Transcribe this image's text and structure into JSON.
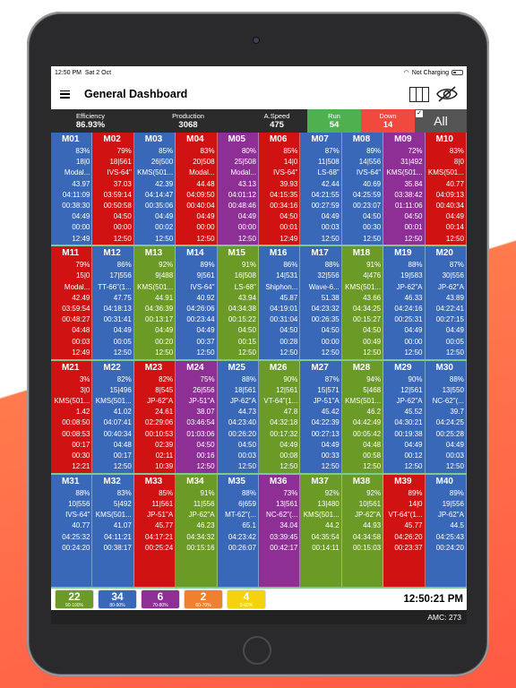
{
  "status": {
    "time": "12:50 PM",
    "date": "Sat 2 Oct",
    "charging": "Not Charging"
  },
  "header": {
    "title": "General Dashboard"
  },
  "summary": {
    "efficiency_label": "Efficiency",
    "efficiency_value": "86.93%",
    "production_label": "Production",
    "production_value": "3068",
    "speed_label": "A.Speed",
    "speed_value": "475",
    "run_label": "Run",
    "run_value": "54",
    "down_label": "Down",
    "down_value": "14",
    "all_label": "All"
  },
  "machines": [
    {
      "id": "M01",
      "color": "blue",
      "lines": [
        "83%",
        "18|0",
        "Modal...",
        "43.97",
        "04:11:09",
        "00:38:30",
        "04:49",
        "00:00",
        "12:49"
      ]
    },
    {
      "id": "M02",
      "color": "red",
      "lines": [
        "79%",
        "18|561",
        "IVS-64\"",
        "37.03",
        "03:59:14",
        "00:50:58",
        "04:50",
        "00:00",
        "12:50"
      ]
    },
    {
      "id": "M03",
      "color": "blue",
      "lines": [
        "85%",
        "26|500",
        "KMS(501...",
        "42.39",
        "04:14:47",
        "00:35:06",
        "04:49",
        "00:02",
        "12:50"
      ]
    },
    {
      "id": "M04",
      "color": "red",
      "lines": [
        "83%",
        "20|508",
        "Modal...",
        "44.48",
        "04:09:50",
        "00:40:04",
        "04:49",
        "00:00",
        "12:50"
      ]
    },
    {
      "id": "M05",
      "color": "purple",
      "lines": [
        "80%",
        "25|508",
        "Modal...",
        "43.13",
        "04:01:12",
        "00:48:46",
        "04:49",
        "00:00",
        "12:50"
      ]
    },
    {
      "id": "M06",
      "color": "red",
      "lines": [
        "85%",
        "14|0",
        "IVS-64\"",
        "39.93",
        "04:15:35",
        "00:34:16",
        "04:50",
        "00:01",
        "12:49"
      ]
    },
    {
      "id": "M07",
      "color": "blue",
      "lines": [
        "87%",
        "11|508",
        "LS-68\"",
        "42.44",
        "04:21:55",
        "00:27:59",
        "04:49",
        "00:03",
        "12:50"
      ]
    },
    {
      "id": "M08",
      "color": "blue",
      "lines": [
        "89%",
        "14|556",
        "IVS-64\"",
        "40.69",
        "04:25:59",
        "00:23:07",
        "04:50",
        "00:30",
        "12:50"
      ]
    },
    {
      "id": "M09",
      "color": "purple",
      "lines": [
        "72%",
        "31|492",
        "KMS(501...",
        "35.84",
        "03:38:42",
        "01:11:06",
        "04:50",
        "00:01",
        "12:50"
      ]
    },
    {
      "id": "M10",
      "color": "red",
      "lines": [
        "83%",
        "8|0",
        "KMS(501...",
        "40.77",
        "04:09:13",
        "00:40:34",
        "04:49",
        "00:14",
        "12:50"
      ]
    },
    {
      "id": "M11",
      "color": "red",
      "lines": [
        "79%",
        "15|0",
        "Modal...",
        "42.49",
        "03:59:54",
        "00:48:27",
        "04:48",
        "00:03",
        "12:49"
      ]
    },
    {
      "id": "M12",
      "color": "blue",
      "lines": [
        "86%",
        "17|556",
        "TT-66\"(1...",
        "47.75",
        "04:18:13",
        "00:31:41",
        "04:49",
        "00:05",
        "12:50"
      ]
    },
    {
      "id": "M13",
      "color": "green",
      "lines": [
        "92%",
        "9|488",
        "KMS(501...",
        "44.91",
        "04:36:39",
        "00:13:17",
        "04:49",
        "00:20",
        "12:50"
      ]
    },
    {
      "id": "M14",
      "color": "blue",
      "lines": [
        "89%",
        "9|561",
        "IVS-64\"",
        "40.92",
        "04:26:06",
        "00:23:44",
        "04:49",
        "00:37",
        "12:50"
      ]
    },
    {
      "id": "M15",
      "color": "green",
      "lines": [
        "91%",
        "16|508",
        "LS-68\"",
        "43.94",
        "04:34:38",
        "00:15:22",
        "04:50",
        "00:15",
        "12:50"
      ]
    },
    {
      "id": "M16",
      "color": "blue",
      "lines": [
        "86%",
        "14|531",
        "Shiphon...",
        "45.87",
        "04:19:01",
        "00:31:04",
        "04:50",
        "00:28",
        "12:50"
      ]
    },
    {
      "id": "M17",
      "color": "blue",
      "lines": [
        "88%",
        "32|556",
        "Wave-6...",
        "51.38",
        "04:23:32",
        "00:26:35",
        "04:50",
        "00:00",
        "12:50"
      ]
    },
    {
      "id": "M18",
      "color": "green",
      "lines": [
        "91%",
        "4|476",
        "KMS(501...",
        "43.66",
        "04:34:25",
        "00:15:27",
        "04:50",
        "00:49",
        "12:50"
      ]
    },
    {
      "id": "M19",
      "color": "blue",
      "lines": [
        "88%",
        "19|583",
        "JP-62\"A",
        "46.33",
        "04:24:16",
        "00:25:31",
        "04:49",
        "00:00",
        "12:50"
      ]
    },
    {
      "id": "M20",
      "color": "blue",
      "lines": [
        "87%",
        "30|556",
        "JP-62\"A",
        "43.89",
        "04:22:41",
        "00:27:15",
        "04:49",
        "00:05",
        "12:50"
      ]
    },
    {
      "id": "M21",
      "color": "red",
      "lines": [
        "3%",
        "3|0",
        "KMS(501...",
        "1.42",
        "00:08:50",
        "00:08:53",
        "00:17",
        "00:30",
        "12:21"
      ]
    },
    {
      "id": "M22",
      "color": "blue",
      "lines": [
        "82%",
        "15|496",
        "KMS(501...",
        "41.02",
        "04:07:41",
        "00:40:34",
        "04:48",
        "00:17",
        "12:50"
      ]
    },
    {
      "id": "M23",
      "color": "red",
      "lines": [
        "82%",
        "8|545",
        "JP-62\"A",
        "24.61",
        "02:29:06",
        "00:10:53",
        "02:39",
        "02:11",
        "10:39"
      ]
    },
    {
      "id": "M24",
      "color": "purple",
      "lines": [
        "75%",
        "26|556",
        "JP-51\"A",
        "38.07",
        "03:46:54",
        "01:03:06",
        "04:50",
        "00:16",
        "12:50"
      ]
    },
    {
      "id": "M25",
      "color": "blue",
      "lines": [
        "88%",
        "18|561",
        "JP-62\"A",
        "44.73",
        "04:23:40",
        "00:26:20",
        "04:50",
        "00:03",
        "12:50"
      ]
    },
    {
      "id": "M26",
      "color": "green",
      "lines": [
        "90%",
        "12|561",
        "VT-64\"(1...",
        "47.8",
        "04:32:18",
        "00:17:32",
        "04:49",
        "00:08",
        "12:50"
      ]
    },
    {
      "id": "M27",
      "color": "blue",
      "lines": [
        "87%",
        "15|571",
        "JP-51\"A",
        "45.42",
        "04:22:39",
        "00:27:13",
        "04:49",
        "00:33",
        "12:50"
      ]
    },
    {
      "id": "M28",
      "color": "green",
      "lines": [
        "94%",
        "5|468",
        "KMS(501...",
        "46.2",
        "04:42:49",
        "00:05:42",
        "04:48",
        "00:58",
        "12:50"
      ]
    },
    {
      "id": "M29",
      "color": "blue",
      "lines": [
        "90%",
        "12|561",
        "JP-62\"A",
        "45.52",
        "04:30:21",
        "00:19:38",
        "04:49",
        "00:12",
        "12:50"
      ]
    },
    {
      "id": "M30",
      "color": "blue",
      "lines": [
        "88%",
        "13|550",
        "NC-62\"(...",
        "39.7",
        "04:24:25",
        "00:25:28",
        "04:49",
        "00:03",
        "12:50"
      ]
    },
    {
      "id": "M31",
      "color": "blue",
      "lines": [
        "88%",
        "10|556",
        "IVS-64\"",
        "40.77",
        "04:25:32",
        "00:24:20"
      ]
    },
    {
      "id": "M32",
      "color": "blue",
      "lines": [
        "83%",
        "5|492",
        "KMS(501...",
        "41.07",
        "04:11:21",
        "00:38:17"
      ]
    },
    {
      "id": "M33",
      "color": "red",
      "lines": [
        "85%",
        "11|561",
        "JP-51\"A",
        "45.77",
        "04:17:21",
        "00:25:24"
      ]
    },
    {
      "id": "M34",
      "color": "green",
      "lines": [
        "91%",
        "11|556",
        "JP-62\"A",
        "46.23",
        "04:34:32",
        "00:15:16"
      ]
    },
    {
      "id": "M35",
      "color": "blue",
      "lines": [
        "88%",
        "6|659",
        "MT-62\"(...",
        "65.1",
        "04:23:42",
        "00:26:07"
      ]
    },
    {
      "id": "M36",
      "color": "purple",
      "lines": [
        "73%",
        "13|561",
        "NC-62\"(...",
        "34.04",
        "03:39:45",
        "00:42:17"
      ]
    },
    {
      "id": "M37",
      "color": "green",
      "lines": [
        "92%",
        "13|480",
        "KMS(501...",
        "44.2",
        "04:35:54",
        "00:14:11"
      ]
    },
    {
      "id": "M38",
      "color": "green",
      "lines": [
        "92%",
        "10|561",
        "JP-62\"A",
        "44.93",
        "04:34:58",
        "00:15:03"
      ]
    },
    {
      "id": "M39",
      "color": "red",
      "lines": [
        "89%",
        "14|0",
        "VT-64\"(1...",
        "45.77",
        "04:26:20",
        "00:23:37"
      ]
    },
    {
      "id": "M40",
      "color": "blue",
      "lines": [
        "89%",
        "19|556",
        "JP-62\"A",
        "44.5",
        "04:25:43",
        "00:24:20"
      ]
    }
  ],
  "legend": [
    {
      "count": "22",
      "range": "90-100%",
      "color": "green"
    },
    {
      "count": "34",
      "range": "80-90%",
      "color": "blue"
    },
    {
      "count": "6",
      "range": "70-80%",
      "color": "purple"
    },
    {
      "count": "2",
      "range": "60-70%",
      "color": "orange"
    },
    {
      "count": "4",
      "range": "0-60%",
      "color": "yellow"
    }
  ],
  "footer": {
    "clock": "12:50:21 PM",
    "amc": "AMC: 273"
  },
  "colors": {
    "blue": "#3a68b8",
    "red": "#d11212",
    "purple": "#8e2f96",
    "green": "#6b9a26",
    "run": "#4fb04f",
    "down": "#f04a3e"
  }
}
